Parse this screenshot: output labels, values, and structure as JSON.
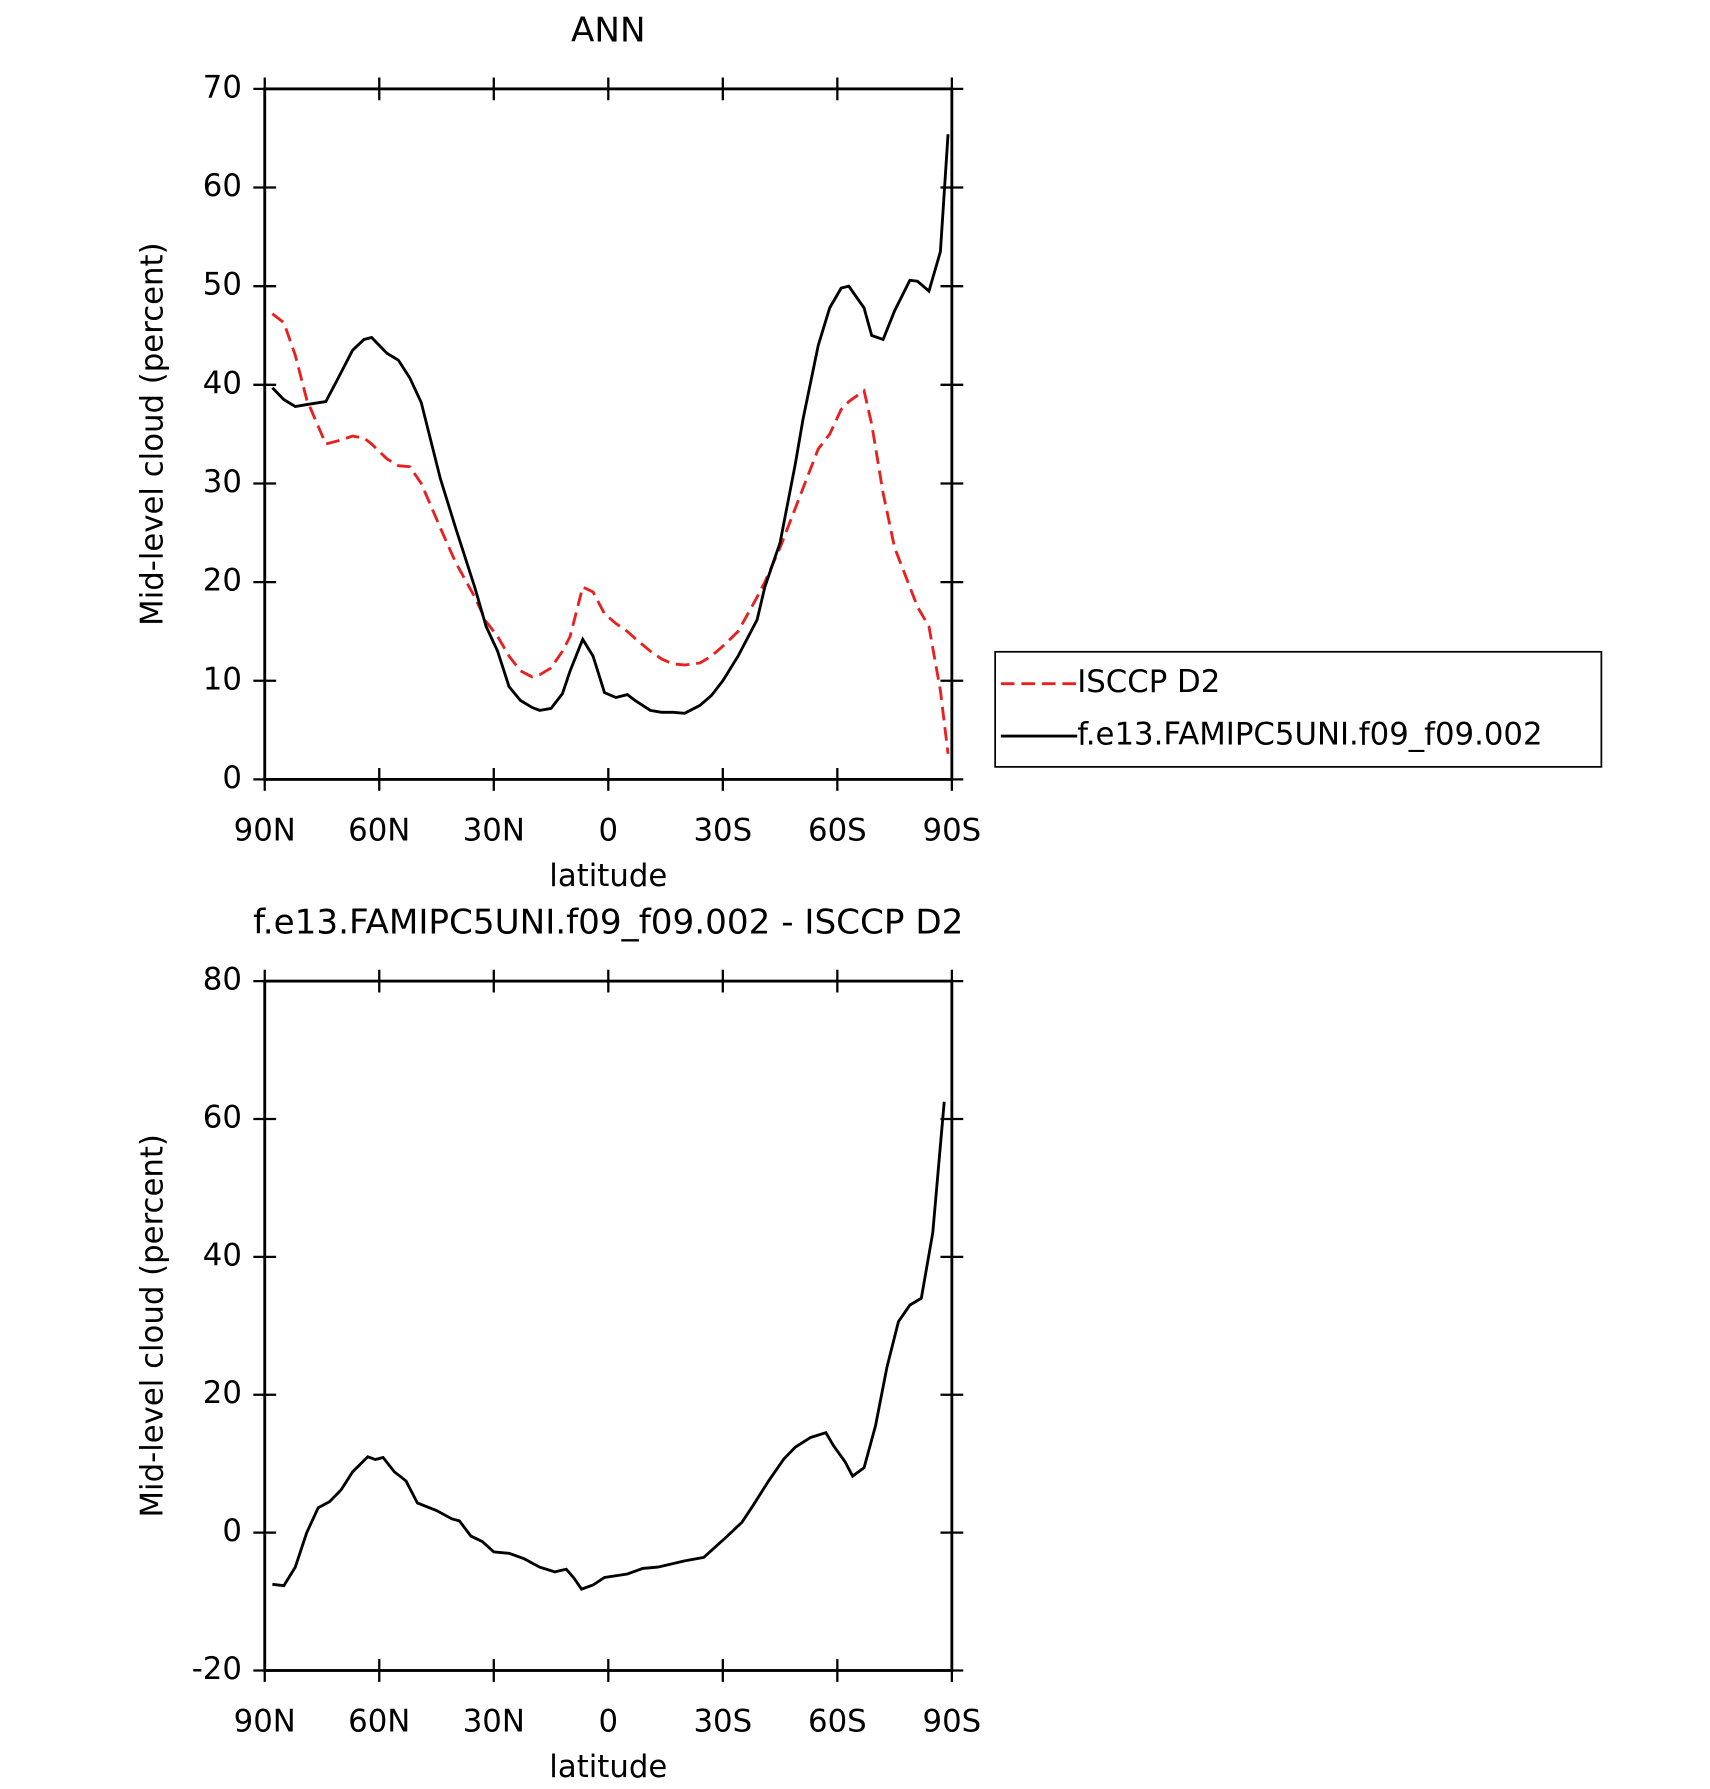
{
  "chart_data": [
    {
      "type": "line",
      "title": "ANN",
      "x_label": "latitude",
      "y_label": "Mid-level cloud (percent)",
      "x": [
        88,
        85,
        82,
        79,
        74,
        71,
        67,
        64,
        62,
        58,
        55,
        52,
        49,
        44,
        40,
        35,
        32,
        29,
        26,
        23,
        20,
        18,
        15,
        12,
        10,
        6.7,
        4,
        1,
        -2,
        -5,
        -7,
        -11,
        -14,
        -17,
        -20,
        -24,
        -27,
        -30,
        -34,
        -39,
        -41,
        -45,
        -49,
        -51,
        -55,
        -58,
        -61,
        -63,
        -67,
        -69,
        -72,
        -75,
        -79,
        -81,
        -84,
        -87,
        -89
      ],
      "series": [
        {
          "name": "ISCCP D2",
          "color": "#e8201e",
          "line_style": "dashed",
          "values": [
            47.2,
            46.3,
            43,
            38.5,
            34,
            34.3,
            34.8,
            34.6,
            34,
            32.5,
            31.8,
            31.7,
            30,
            25.5,
            22,
            18.5,
            16,
            14.5,
            12.5,
            11,
            10.4,
            10.6,
            11.3,
            13,
            14.5,
            19.5,
            19,
            16.8,
            15.8,
            15,
            14.3,
            13,
            12.2,
            11.7,
            11.6,
            11.8,
            12.5,
            13.5,
            15,
            18.5,
            20,
            23.5,
            27.5,
            29.5,
            33.5,
            35,
            37.5,
            38.3,
            39.4,
            36,
            29,
            23.5,
            19.5,
            17.5,
            15.5,
            9,
            2.6
          ]
        },
        {
          "name": "f.e13.FAMIPC5UNI.f09_f09.002",
          "color": "#000000",
          "line_style": "solid",
          "values": [
            39.7,
            38.5,
            37.8,
            38,
            38.3,
            40.5,
            43.5,
            44.6,
            44.8,
            43.2,
            42.5,
            40.7,
            38.2,
            30.5,
            25.5,
            19.5,
            15.5,
            13,
            9.4,
            8,
            7.3,
            7,
            7.2,
            8.7,
            11,
            14.2,
            12.5,
            8.8,
            8.3,
            8.6,
            8,
            7,
            6.8,
            6.8,
            6.7,
            7.5,
            8.5,
            10,
            12.5,
            16.2,
            19.5,
            24,
            32,
            36.5,
            44,
            47.8,
            49.8,
            50,
            47.8,
            45,
            44.6,
            47.5,
            50.6,
            50.5,
            49.5,
            53.5,
            65.4
          ]
        }
      ],
      "xlim": [
        90,
        -90
      ],
      "xticks": [
        {
          "value": 90,
          "label": "90N"
        },
        {
          "value": 60,
          "label": "60N"
        },
        {
          "value": 30,
          "label": "30N"
        },
        0,
        {
          "value": -30,
          "label": "30S"
        },
        {
          "value": -60,
          "label": "60S"
        },
        {
          "value": -90,
          "label": "90S"
        }
      ],
      "ylim": [
        0,
        70
      ],
      "yticks": [
        0,
        10,
        20,
        30,
        40,
        50,
        60,
        70
      ],
      "legend": "right"
    },
    {
      "type": "line",
      "title": "f.e13.FAMIPC5UNI.f09_f09.002 - ISCCP D2",
      "x_label": "latitude",
      "y_label": "Mid-level cloud (percent)",
      "x": [
        88,
        85,
        82,
        79,
        76,
        73,
        70,
        67,
        63,
        61,
        59,
        56,
        53,
        50,
        45,
        41,
        39,
        36,
        33,
        30,
        26,
        22,
        18,
        14,
        11,
        9,
        7,
        4,
        1,
        -5,
        -9,
        -13,
        -20,
        -25,
        -31,
        -35,
        -38,
        -42,
        -46,
        -49,
        -53,
        -57,
        -59,
        -62,
        -64,
        -67,
        -70,
        -73,
        -76,
        -79,
        -82,
        -85,
        -88
      ],
      "values": [
        -7.5,
        -7.7,
        -5,
        0,
        3.6,
        4.5,
        6.2,
        8.8,
        11,
        10.6,
        10.9,
        8.8,
        7.5,
        4.3,
        3.2,
        2,
        1.7,
        -0.5,
        -1.3,
        -2.8,
        -3,
        -3.8,
        -5,
        -5.7,
        -5.3,
        -6.6,
        -8.2,
        -7.6,
        -6.5,
        -6,
        -5.2,
        -5,
        -4.1,
        -3.6,
        -0.6,
        1.5,
        4,
        7.5,
        10.7,
        12.4,
        13.8,
        14.5,
        12.6,
        10.3,
        8.2,
        9.4,
        15.5,
        24,
        30.6,
        33,
        34,
        43.5,
        62.5
      ],
      "color": "#000000",
      "xlim": [
        90,
        -90
      ],
      "xticks": [
        {
          "value": 90,
          "label": "90N"
        },
        {
          "value": 60,
          "label": "60N"
        },
        {
          "value": 30,
          "label": "30N"
        },
        0,
        {
          "value": -30,
          "label": "30S"
        },
        {
          "value": -60,
          "label": "60S"
        },
        {
          "value": -90,
          "label": "90S"
        }
      ],
      "ylim": [
        -20,
        80
      ],
      "yticks": [
        -20,
        0,
        20,
        40,
        60,
        80
      ]
    }
  ]
}
